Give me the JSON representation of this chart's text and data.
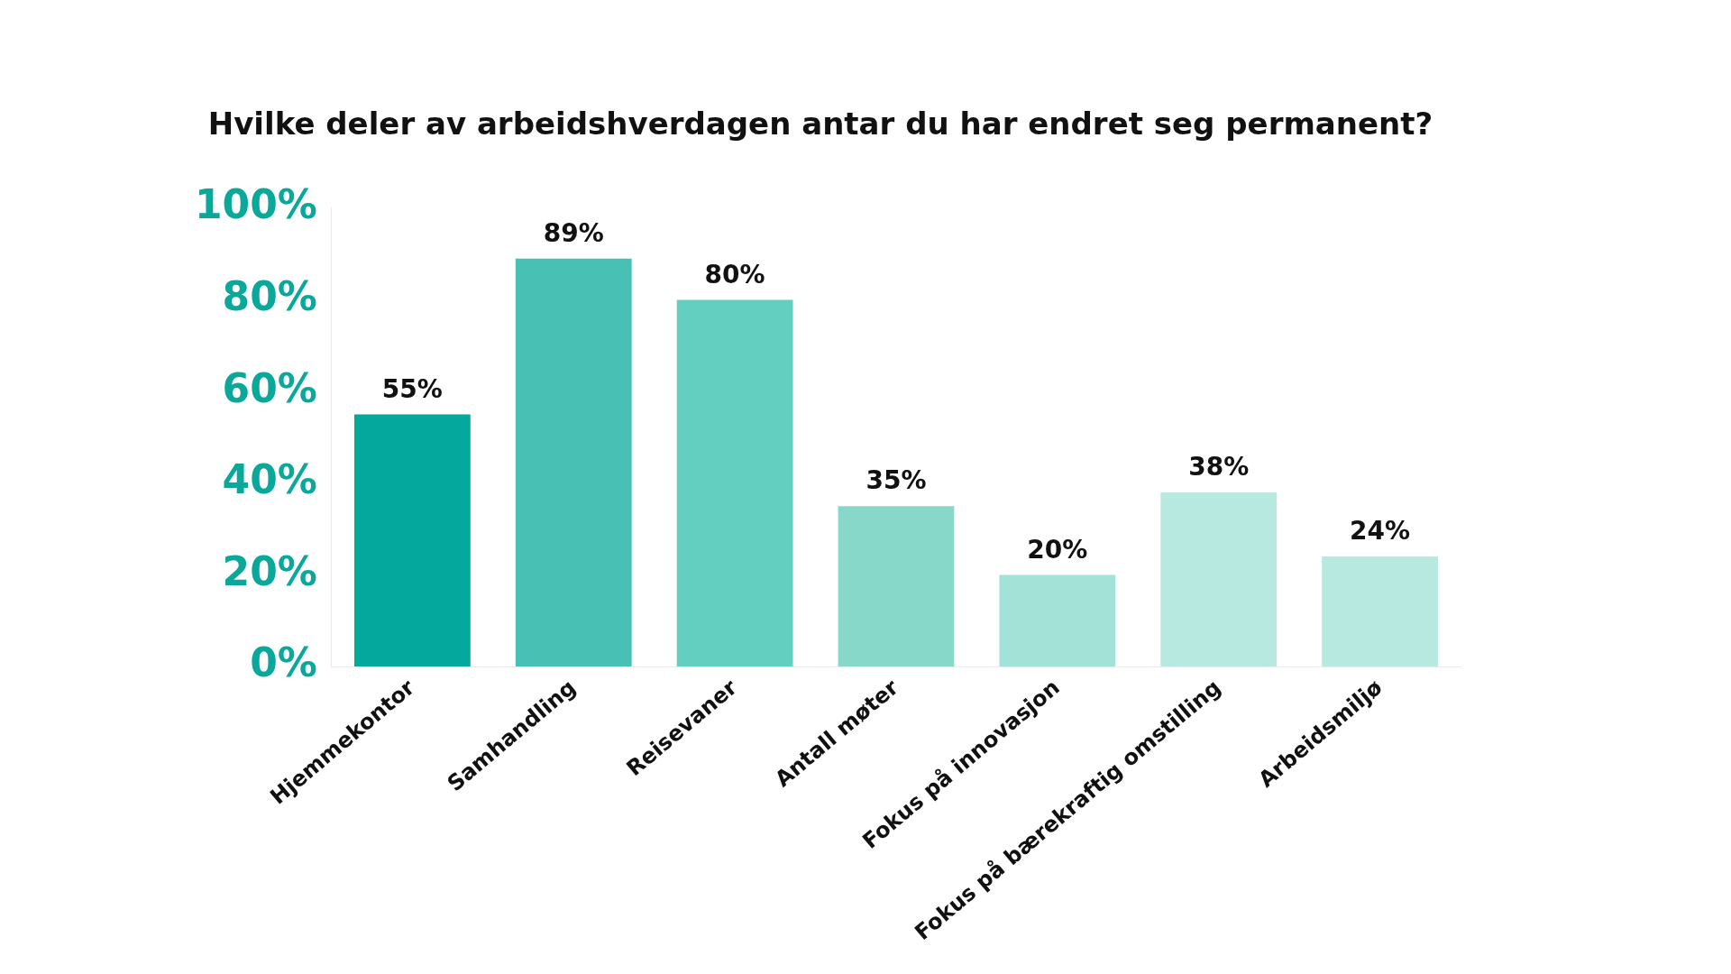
{
  "chart_data": {
    "type": "bar",
    "title": "Hvilke deler av arbeidshverdagen antar du har endret seg permanent?",
    "categories": [
      "Hjemmekontor",
      "Samhandling",
      "Reisevaner",
      "Antall møter",
      "Fokus på innovasjon",
      "Fokus på bærekraftig omstilling",
      "Arbeidsmiljø"
    ],
    "values": [
      55,
      89,
      80,
      35,
      20,
      38,
      24
    ],
    "colors": [
      "#04a89d",
      "#48c1b4",
      "#63cfc0",
      "#87d8c9",
      "#a3e2d6",
      "#b8e9e0",
      "#b8e9e0"
    ],
    "value_labels": [
      "55%",
      "89%",
      "80%",
      "35%",
      "20%",
      "38%",
      "24%"
    ],
    "ylim": [
      0,
      100
    ],
    "yticks": [
      {
        "value": 0,
        "label": "0%"
      },
      {
        "value": 20,
        "label": "20%"
      },
      {
        "value": 40,
        "label": "40%"
      },
      {
        "value": 60,
        "label": "60%"
      },
      {
        "value": 80,
        "label": "80%"
      },
      {
        "value": 100,
        "label": "100%"
      }
    ],
    "grid": false,
    "legend": false
  }
}
